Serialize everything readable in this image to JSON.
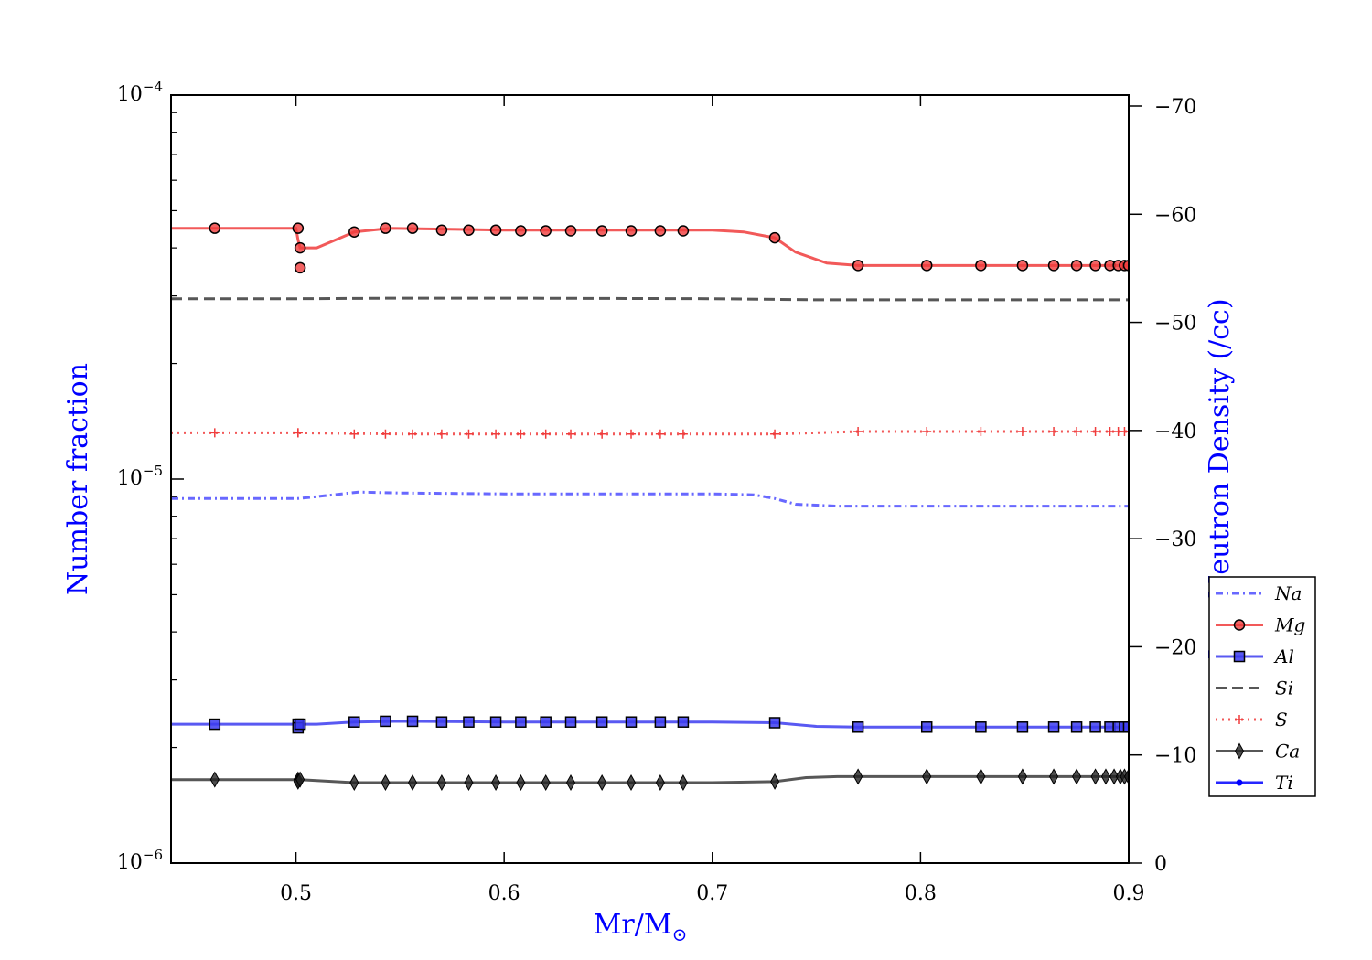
{
  "chart_data": {
    "type": "line",
    "xlabel": "Mr/M",
    "xlabel_subscript": "⊙",
    "ylabel": "Number fraction",
    "y2label": "Log Neutron Density (/cc)",
    "xlim": [
      0.44,
      0.9
    ],
    "ylim": [
      1e-06,
      0.0001
    ],
    "y_scale": "log",
    "y2lim": [
      0,
      -70
    ],
    "grid": false,
    "legend_position": "right, outside plot",
    "x_ticks": [
      0.5,
      0.6,
      0.7,
      0.8,
      0.9
    ],
    "x_tick_labels": [
      "0.5",
      "0.6",
      "0.7",
      "0.8",
      "0.9"
    ],
    "y_tick_labels": [
      {
        "base": "10",
        "exp": "−4"
      },
      {
        "base": "10",
        "exp": "−5"
      },
      {
        "base": "10",
        "exp": "−6"
      }
    ],
    "y2_ticks": [
      -70,
      -60,
      -50,
      -40,
      -30,
      -20,
      -10,
      0
    ],
    "y2_tick_labels": [
      "−70",
      "−60",
      "−50",
      "−40",
      "−30",
      "−20",
      "−10",
      "0"
    ],
    "series": [
      {
        "name": "Na",
        "color": "#4d4dff",
        "dash": "8,4,2,4",
        "marker": "none",
        "x": [
          0.44,
          0.5,
          0.501,
          0.51,
          0.53,
          0.55,
          0.6,
          0.65,
          0.7,
          0.72,
          0.73,
          0.74,
          0.76,
          0.78,
          0.8,
          0.85,
          0.9
        ],
        "y": [
          8.9e-06,
          8.9e-06,
          8.9e-06,
          9e-06,
          9.25e-06,
          9.2e-06,
          9.15e-06,
          9.15e-06,
          9.15e-06,
          9.1e-06,
          8.9e-06,
          8.6e-06,
          8.5e-06,
          8.5e-06,
          8.5e-06,
          8.5e-06,
          8.5e-06
        ],
        "marker_x": []
      },
      {
        "name": "Mg",
        "color": "#f03c3c",
        "dash": "",
        "marker": "circle",
        "x": [
          0.44,
          0.5,
          0.501,
          0.502,
          0.51,
          0.528,
          0.545,
          0.6,
          0.65,
          0.7,
          0.715,
          0.73,
          0.74,
          0.755,
          0.77,
          0.8,
          0.85,
          0.9
        ],
        "y": [
          4.5e-05,
          4.5e-05,
          4.2e-05,
          4e-05,
          4e-05,
          4.4e-05,
          4.5e-05,
          4.45e-05,
          4.45e-05,
          4.45e-05,
          4.4e-05,
          4.25e-05,
          3.9e-05,
          3.65e-05,
          3.6e-05,
          3.6e-05,
          3.6e-05,
          3.6e-05
        ],
        "marker_x": [
          0.461,
          0.501,
          0.502,
          0.502,
          0.528,
          0.543,
          0.556,
          0.57,
          0.583,
          0.596,
          0.608,
          0.62,
          0.632,
          0.647,
          0.661,
          0.675,
          0.686,
          0.73,
          0.77,
          0.803,
          0.829,
          0.849,
          0.864,
          0.875,
          0.884,
          0.891,
          0.895,
          0.898,
          0.9
        ],
        "marker_y": [
          4.5e-05,
          4.5e-05,
          4e-05,
          3.55e-05,
          4.4e-05,
          4.5e-05,
          4.5e-05,
          4.45e-05,
          4.45e-05,
          4.45e-05,
          4.43e-05,
          4.43e-05,
          4.43e-05,
          4.43e-05,
          4.43e-05,
          4.43e-05,
          4.43e-05,
          4.25e-05,
          3.6e-05,
          3.6e-05,
          3.6e-05,
          3.6e-05,
          3.6e-05,
          3.6e-05,
          3.6e-05,
          3.6e-05,
          3.6e-05,
          3.6e-05,
          3.6e-05
        ]
      },
      {
        "name": "Al",
        "color": "#3c3cf0",
        "dash": "",
        "marker": "square",
        "x": [
          0.44,
          0.5,
          0.502,
          0.51,
          0.528,
          0.55,
          0.6,
          0.65,
          0.7,
          0.73,
          0.75,
          0.77,
          0.8,
          0.85,
          0.9
        ],
        "y": [
          2.3e-06,
          2.3e-06,
          2.3e-06,
          2.3e-06,
          2.33e-06,
          2.34e-06,
          2.33e-06,
          2.33e-06,
          2.33e-06,
          2.32e-06,
          2.27e-06,
          2.26e-06,
          2.26e-06,
          2.26e-06,
          2.26e-06
        ],
        "marker_x": [
          0.461,
          0.501,
          0.501,
          0.502,
          0.528,
          0.543,
          0.556,
          0.57,
          0.583,
          0.596,
          0.608,
          0.62,
          0.632,
          0.647,
          0.661,
          0.675,
          0.686,
          0.73,
          0.77,
          0.803,
          0.829,
          0.849,
          0.864,
          0.875,
          0.884,
          0.891,
          0.895,
          0.898,
          0.9
        ],
        "marker_y": [
          2.3e-06,
          2.3e-06,
          2.25e-06,
          2.3e-06,
          2.33e-06,
          2.34e-06,
          2.34e-06,
          2.33e-06,
          2.33e-06,
          2.33e-06,
          2.33e-06,
          2.33e-06,
          2.33e-06,
          2.33e-06,
          2.33e-06,
          2.33e-06,
          2.33e-06,
          2.32e-06,
          2.26e-06,
          2.26e-06,
          2.26e-06,
          2.26e-06,
          2.26e-06,
          2.26e-06,
          2.26e-06,
          2.26e-06,
          2.26e-06,
          2.26e-06,
          2.26e-06
        ]
      },
      {
        "name": "Si",
        "color": "#3a3a3a",
        "dash": "12,6",
        "marker": "none",
        "x": [
          0.44,
          0.5,
          0.55,
          0.6,
          0.7,
          0.75,
          0.8,
          0.9
        ],
        "y": [
          2.95e-05,
          2.95e-05,
          2.96e-05,
          2.96e-05,
          2.95e-05,
          2.93e-05,
          2.93e-05,
          2.93e-05
        ],
        "marker_x": []
      },
      {
        "name": "S",
        "color": "#f03c3c",
        "dash": "2,5",
        "marker": "plus",
        "x": [
          0.44,
          0.5,
          0.55,
          0.6,
          0.7,
          0.73,
          0.77,
          0.8,
          0.9
        ],
        "y": [
          1.32e-05,
          1.32e-05,
          1.31e-05,
          1.31e-05,
          1.31e-05,
          1.31e-05,
          1.33e-05,
          1.33e-05,
          1.33e-05
        ],
        "marker_x": [
          0.461,
          0.501,
          0.501,
          0.528,
          0.543,
          0.556,
          0.57,
          0.583,
          0.596,
          0.608,
          0.62,
          0.632,
          0.647,
          0.661,
          0.675,
          0.686,
          0.73,
          0.77,
          0.803,
          0.829,
          0.849,
          0.864,
          0.875,
          0.884,
          0.891,
          0.895,
          0.898,
          0.9
        ],
        "marker_y": [
          1.32e-05,
          1.32e-05,
          1.32e-05,
          1.31e-05,
          1.31e-05,
          1.31e-05,
          1.31e-05,
          1.31e-05,
          1.31e-05,
          1.31e-05,
          1.31e-05,
          1.31e-05,
          1.31e-05,
          1.31e-05,
          1.31e-05,
          1.31e-05,
          1.31e-05,
          1.33e-05,
          1.33e-05,
          1.33e-05,
          1.33e-05,
          1.33e-05,
          1.33e-05,
          1.33e-05,
          1.33e-05,
          1.33e-05,
          1.33e-05,
          1.33e-05
        ]
      },
      {
        "name": "Ca",
        "color": "#3a3a3a",
        "dash": "",
        "marker": "diamond",
        "x": [
          0.44,
          0.5,
          0.502,
          0.51,
          0.528,
          0.55,
          0.6,
          0.7,
          0.73,
          0.745,
          0.76,
          0.77,
          0.8,
          0.85,
          0.9
        ],
        "y": [
          1.65e-06,
          1.65e-06,
          1.65e-06,
          1.64e-06,
          1.62e-06,
          1.62e-06,
          1.62e-06,
          1.62e-06,
          1.63e-06,
          1.67e-06,
          1.68e-06,
          1.68e-06,
          1.68e-06,
          1.68e-06,
          1.68e-06
        ],
        "marker_x": [
          0.461,
          0.501,
          0.501,
          0.502,
          0.528,
          0.543,
          0.556,
          0.57,
          0.583,
          0.596,
          0.608,
          0.62,
          0.632,
          0.647,
          0.661,
          0.675,
          0.686,
          0.73,
          0.77,
          0.803,
          0.829,
          0.849,
          0.864,
          0.875,
          0.884,
          0.889,
          0.893,
          0.896,
          0.898,
          0.9
        ],
        "marker_y": [
          1.65e-06,
          1.65e-06,
          1.63e-06,
          1.65e-06,
          1.62e-06,
          1.62e-06,
          1.62e-06,
          1.62e-06,
          1.62e-06,
          1.62e-06,
          1.62e-06,
          1.62e-06,
          1.62e-06,
          1.62e-06,
          1.62e-06,
          1.62e-06,
          1.62e-06,
          1.63e-06,
          1.68e-06,
          1.68e-06,
          1.68e-06,
          1.68e-06,
          1.68e-06,
          1.68e-06,
          1.68e-06,
          1.68e-06,
          1.68e-06,
          1.68e-06,
          1.68e-06,
          1.68e-06
        ]
      },
      {
        "name": "Ti",
        "color": "#0000ff",
        "dash": "",
        "marker": "dot",
        "x": [],
        "y": [],
        "marker_x": []
      }
    ]
  }
}
